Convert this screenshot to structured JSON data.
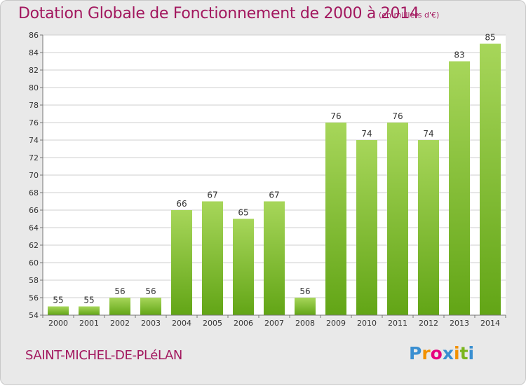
{
  "header": {
    "title": "Dotation Globale de Fonctionnement de 2000 à 2014",
    "subtitle": "(en milliers d'€)"
  },
  "footer": {
    "place": "SAINT-MICHEL-DE-PLéLAN",
    "logo_letters": [
      "P",
      "r",
      "o",
      "x",
      "i",
      "t",
      "i"
    ]
  },
  "colors": {
    "title": "#a2175e",
    "bar_light": "#a7d65a",
    "bar_dark": "#62a516",
    "background": "#e9e9e9",
    "logo": [
      "#3a8fd1",
      "#f29100",
      "#e6007e",
      "#3a8fd1",
      "#f29100",
      "#7ab51d",
      "#3a8fd1"
    ]
  },
  "chart_data": {
    "type": "bar",
    "title": "Dotation Globale de Fonctionnement de 2000 à 2014",
    "subtitle": "(en milliers d'€)",
    "categories": [
      "2000",
      "2001",
      "2002",
      "2003",
      "2004",
      "2005",
      "2006",
      "2007",
      "2008",
      "2009",
      "2010",
      "2011",
      "2012",
      "2013",
      "2014"
    ],
    "values": [
      55,
      55,
      56,
      56,
      66,
      67,
      65,
      67,
      56,
      76,
      74,
      76,
      74,
      83,
      85
    ],
    "ylim": [
      54,
      86
    ],
    "yticks": [
      54,
      56,
      58,
      60,
      62,
      64,
      66,
      68,
      70,
      72,
      74,
      76,
      78,
      80,
      82,
      84,
      86
    ],
    "grid": true,
    "legend": "none"
  }
}
